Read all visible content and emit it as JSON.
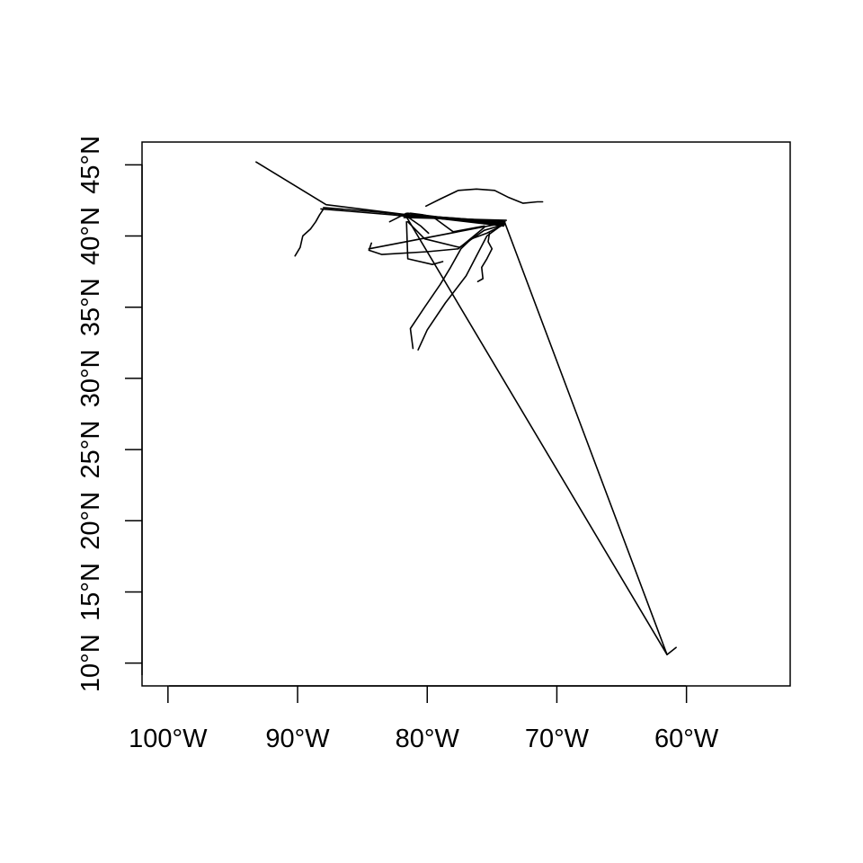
{
  "chart_data": {
    "type": "line",
    "title": "",
    "xlabel": "",
    "ylabel": "",
    "xlim": [
      -102,
      -52
    ],
    "ylim": [
      8.4,
      46.6
    ],
    "grid": false,
    "legend": "none",
    "x_ticks": [
      {
        "value": -100,
        "label": "100°W"
      },
      {
        "value": -90,
        "label": "90°W"
      },
      {
        "value": -80,
        "label": "80°W"
      },
      {
        "value": -70,
        "label": "70°W"
      },
      {
        "value": -60,
        "label": "60°W"
      }
    ],
    "y_ticks": [
      {
        "value": 10,
        "label": "10°N"
      },
      {
        "value": 15,
        "label": "15°N"
      },
      {
        "value": 20,
        "label": "20°N"
      },
      {
        "value": 25,
        "label": "25°N"
      },
      {
        "value": 30,
        "label": "30°N"
      },
      {
        "value": 35,
        "label": "35°N"
      },
      {
        "value": 40,
        "label": "40°N"
      },
      {
        "value": 45,
        "label": "45°N"
      }
    ],
    "series": [
      {
        "points": [
          [
            -93.2,
            45.2
          ],
          [
            -87.8,
            42.2
          ],
          [
            -81.6,
            41.5
          ],
          [
            -74.0,
            40.8
          ]
        ]
      },
      {
        "points": [
          [
            -90.2,
            38.6
          ],
          [
            -89.8,
            39.2
          ],
          [
            -89.6,
            40.0
          ],
          [
            -89.0,
            40.5
          ],
          [
            -88.6,
            41.0
          ],
          [
            -88.3,
            41.5
          ],
          [
            -88.0,
            41.9
          ]
        ]
      },
      {
        "points": [
          [
            -88.0,
            42.0
          ],
          [
            -84.0,
            41.7
          ],
          [
            -81.7,
            41.5
          ],
          [
            -74.0,
            41.0
          ]
        ]
      },
      {
        "points": [
          [
            -88.2,
            41.9
          ],
          [
            -82.8,
            41.5
          ],
          [
            -81.7,
            41.4
          ],
          [
            -74.1,
            40.9
          ]
        ]
      },
      {
        "points": [
          [
            -81.7,
            41.5
          ],
          [
            -74.0,
            40.9
          ]
        ]
      },
      {
        "points": [
          [
            -81.6,
            41.5
          ],
          [
            -74.1,
            40.7
          ]
        ]
      },
      {
        "points": [
          [
            -81.8,
            41.3
          ],
          [
            -73.9,
            41.1
          ]
        ]
      },
      {
        "points": [
          [
            -81.5,
            41.6
          ],
          [
            -74.2,
            40.8
          ]
        ]
      },
      {
        "points": [
          [
            -81.7,
            41.5
          ],
          [
            -74.0,
            41.0
          ]
        ]
      },
      {
        "points": [
          [
            -82.9,
            41.0
          ],
          [
            -81.6,
            41.6
          ],
          [
            -81.4,
            41.3
          ]
        ]
      },
      {
        "points": [
          [
            -81.7,
            41.5
          ],
          [
            -79.5,
            41.3
          ],
          [
            -78.0,
            40.3
          ],
          [
            -75.6,
            40.7
          ]
        ]
      },
      {
        "points": [
          [
            -81.6,
            41.4
          ],
          [
            -80.5,
            40.7
          ],
          [
            -79.9,
            40.2
          ]
        ]
      },
      {
        "points": [
          [
            -81.3,
            41.6
          ],
          [
            -80.4,
            41.5
          ],
          [
            -78.8,
            41.2
          ],
          [
            -74.1,
            40.9
          ]
        ]
      },
      {
        "points": [
          [
            -81.6,
            41.0
          ],
          [
            -81.5,
            38.4
          ],
          [
            -79.6,
            38.0
          ],
          [
            -78.8,
            38.2
          ]
        ]
      },
      {
        "points": [
          [
            -84.3,
            39.5
          ],
          [
            -84.5,
            39.0
          ],
          [
            -83.5,
            38.7
          ],
          [
            -80.0,
            38.9
          ],
          [
            -77.6,
            39.1
          ],
          [
            -75.6,
            40.6
          ]
        ]
      },
      {
        "points": [
          [
            -84.5,
            39.1
          ],
          [
            -75.9,
            40.6
          ],
          [
            -74.1,
            40.9
          ]
        ]
      },
      {
        "points": [
          [
            -81.5,
            41.0
          ],
          [
            -80.2,
            39.8
          ],
          [
            -77.5,
            39.2
          ],
          [
            -75.6,
            40.4
          ],
          [
            -74.1,
            40.8
          ]
        ]
      },
      {
        "points": [
          [
            -74.1,
            40.8
          ],
          [
            -75.4,
            40.2
          ],
          [
            -76.6,
            39.8
          ],
          [
            -77.4,
            39.1
          ],
          [
            -78.2,
            37.8
          ],
          [
            -79.0,
            36.6
          ],
          [
            -80.2,
            35.0
          ],
          [
            -81.3,
            33.5
          ],
          [
            -81.1,
            32.1
          ]
        ]
      },
      {
        "points": [
          [
            -80.7,
            32.0
          ],
          [
            -80.0,
            33.4
          ],
          [
            -78.6,
            35.3
          ],
          [
            -77.0,
            37.2
          ],
          [
            -76.2,
            38.6
          ],
          [
            -75.4,
            40.0
          ],
          [
            -74.2,
            40.8
          ]
        ]
      },
      {
        "points": [
          [
            -75.2,
            40.2
          ],
          [
            -75.3,
            39.6
          ],
          [
            -75.0,
            39.1
          ],
          [
            -75.4,
            38.4
          ],
          [
            -75.8,
            37.8
          ],
          [
            -75.7,
            37.0
          ],
          [
            -76.1,
            36.8
          ]
        ]
      },
      {
        "points": [
          [
            -80.1,
            42.1
          ],
          [
            -79.0,
            42.6
          ],
          [
            -77.6,
            43.2
          ],
          [
            -76.2,
            43.3
          ],
          [
            -74.8,
            43.2
          ],
          [
            -73.7,
            42.7
          ],
          [
            -72.6,
            42.3
          ],
          [
            -71.5,
            42.4
          ],
          [
            -71.1,
            42.4
          ]
        ]
      },
      {
        "points": [
          [
            -81.7,
            41.5
          ],
          [
            -61.5,
            10.6
          ],
          [
            -60.8,
            11.1
          ]
        ]
      },
      {
        "points": [
          [
            -74.0,
            40.9
          ],
          [
            -61.5,
            10.6
          ]
        ]
      }
    ]
  }
}
